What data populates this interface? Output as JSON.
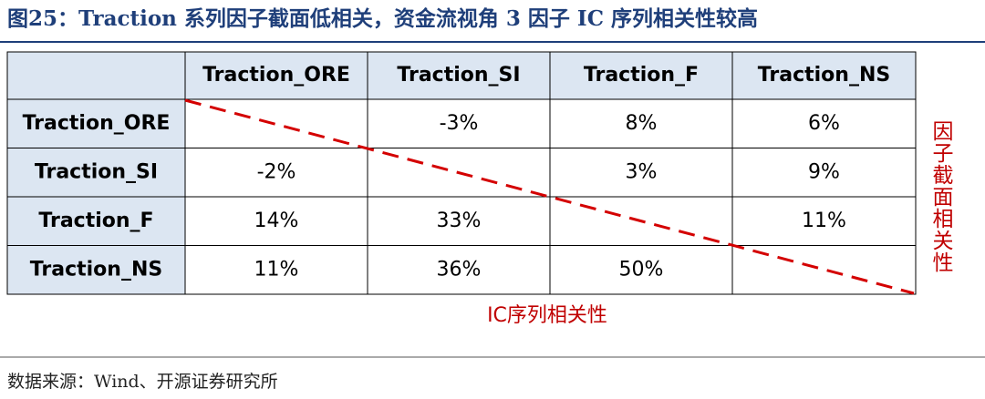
{
  "header": {
    "title": "图25：Traction 系列因子截面低相关，资金流视角 3 因子 IC 序列相关性较高"
  },
  "table": {
    "columns": [
      "Traction_ORE",
      "Traction_SI",
      "Traction_F",
      "Traction_NS"
    ],
    "rows": [
      [
        "Traction_ORE",
        null,
        "-3%",
        "8%",
        "6%"
      ],
      [
        "Traction_SI",
        "-2%",
        null,
        "3%",
        "9%"
      ],
      [
        "Traction_F",
        "14%",
        "33%",
        null,
        "11%"
      ],
      [
        "Traction_NS",
        "11%",
        "36%",
        "50%",
        null
      ]
    ]
  },
  "annotations": {
    "upper": "因子截面相关性",
    "lower": "IC序列相关性"
  },
  "source": "数据来源：Wind、开源证券研究所"
}
